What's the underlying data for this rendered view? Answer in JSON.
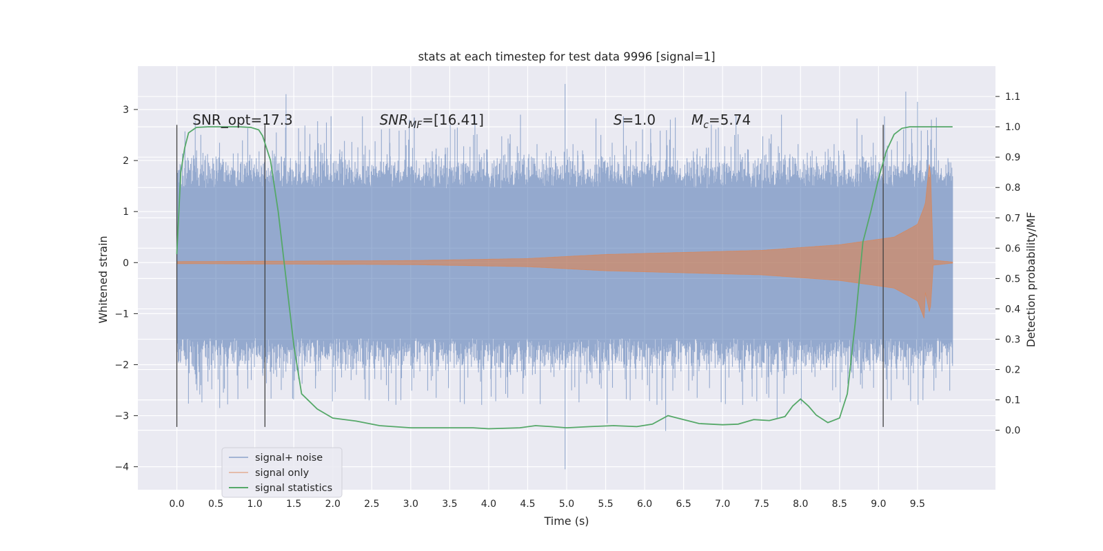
{
  "chart_data": {
    "type": "line",
    "title": "stats at each timestep for test data 9996 [signal=1]",
    "xlabel": "Time (s)",
    "ylabel": "Whitened strain",
    "y2label": "Detection probability/MF",
    "xlim": [
      -0.5,
      10.5
    ],
    "ylim": [
      -4.45,
      3.85
    ],
    "y2lim": [
      -0.196,
      1.2
    ],
    "xticks": [
      "0.0",
      "0.5",
      "1.0",
      "1.5",
      "2.0",
      "2.5",
      "3.0",
      "3.5",
      "4.0",
      "4.5",
      "5.0",
      "5.5",
      "6.0",
      "6.5",
      "7.0",
      "7.5",
      "8.0",
      "8.5",
      "9.0",
      "9.5"
    ],
    "yticks": [
      "3",
      "2",
      "1",
      "0",
      "−1",
      "−2",
      "−3",
      "−4"
    ],
    "y2ticks": [
      "1.1",
      "1.0",
      "0.9",
      "0.8",
      "0.7",
      "0.6",
      "0.5",
      "0.4",
      "0.3",
      "0.2",
      "0.1",
      "0.0"
    ],
    "grid": true,
    "legend_position": "lower-left",
    "annotations": [
      {
        "text": "SNR_opt=17.3",
        "x": 0.2,
        "y": 1.0
      },
      {
        "base": "SNR",
        "sub": "MF",
        "rest": "=[16.41]",
        "x": 2.6,
        "y": 1.0
      },
      {
        "base": "S",
        "rest": "=1.0",
        "x": 5.6,
        "y": 1.0
      },
      {
        "base": "M",
        "sub": "c",
        "rest": "=5.74",
        "x": 6.6,
        "y": 1.0
      }
    ],
    "vertical_lines": [
      {
        "x": 0.0,
        "y_from": -3.22,
        "y_to": 2.7
      },
      {
        "x": 1.13,
        "y_from": -3.22,
        "y_to": 2.7
      },
      {
        "x": 9.06,
        "y_from": -3.22,
        "y_to": 2.7
      }
    ],
    "series": [
      {
        "name": "signal+ noise",
        "color": "#4c72b0",
        "axis": "left",
        "x_range": [
          0.0,
          9.95
        ],
        "noise_band": [
          -1.6,
          1.6
        ],
        "peaks": [
          {
            "x": 1.4,
            "y": 3.3
          },
          {
            "x": 4.98,
            "y": 3.5
          },
          {
            "x": 4.98,
            "y": -4.05
          },
          {
            "x": 6.27,
            "y": -3.3
          },
          {
            "x": 9.35,
            "y": 3.35
          },
          {
            "x": 9.5,
            "y": 3.15
          },
          {
            "x": 0.55,
            "y": -2.85
          },
          {
            "x": 5.52,
            "y": -3.15
          },
          {
            "x": 7.7,
            "y": -3.05
          }
        ]
      },
      {
        "name": "signal only",
        "color": "#dd8452",
        "axis": "left",
        "envelope": [
          [
            0.0,
            0.02
          ],
          [
            3.0,
            0.04
          ],
          [
            4.5,
            0.08
          ],
          [
            5.5,
            0.16
          ],
          [
            6.5,
            0.2
          ],
          [
            7.5,
            0.24
          ],
          [
            8.5,
            0.35
          ],
          [
            9.2,
            0.5
          ],
          [
            9.5,
            0.75
          ],
          [
            9.6,
            1.15
          ],
          [
            9.66,
            2.05
          ],
          [
            9.68,
            1.2
          ],
          [
            9.7,
            0.05
          ],
          [
            9.95,
            0.01
          ]
        ]
      },
      {
        "name": "signal statistics",
        "color": "#55a868",
        "axis": "right",
        "x": [
          0.0,
          0.05,
          0.1,
          0.15,
          0.25,
          0.4,
          0.6,
          0.8,
          0.95,
          1.05,
          1.1,
          1.2,
          1.3,
          1.4,
          1.5,
          1.6,
          1.8,
          2.0,
          2.3,
          2.6,
          3.0,
          3.4,
          3.8,
          4.0,
          4.4,
          4.6,
          4.8,
          5.0,
          5.3,
          5.6,
          5.9,
          6.1,
          6.3,
          6.5,
          6.7,
          7.0,
          7.2,
          7.4,
          7.6,
          7.8,
          7.9,
          8.0,
          8.1,
          8.2,
          8.35,
          8.5,
          8.6,
          8.7,
          8.8,
          8.9,
          9.0,
          9.1,
          9.2,
          9.3,
          9.4,
          9.6,
          9.8,
          9.95
        ],
        "y": [
          0.58,
          0.85,
          0.93,
          0.98,
          0.998,
          1.0,
          1.0,
          1.0,
          0.998,
          0.99,
          0.97,
          0.89,
          0.72,
          0.5,
          0.28,
          0.12,
          0.07,
          0.04,
          0.03,
          0.015,
          0.008,
          0.008,
          0.008,
          0.005,
          0.008,
          0.015,
          0.012,
          0.008,
          0.012,
          0.015,
          0.012,
          0.02,
          0.048,
          0.035,
          0.022,
          0.018,
          0.02,
          0.035,
          0.032,
          0.045,
          0.08,
          0.103,
          0.08,
          0.05,
          0.025,
          0.04,
          0.12,
          0.35,
          0.62,
          0.72,
          0.83,
          0.92,
          0.975,
          0.995,
          1.0,
          1.0,
          1.0,
          1.0
        ]
      }
    ]
  }
}
